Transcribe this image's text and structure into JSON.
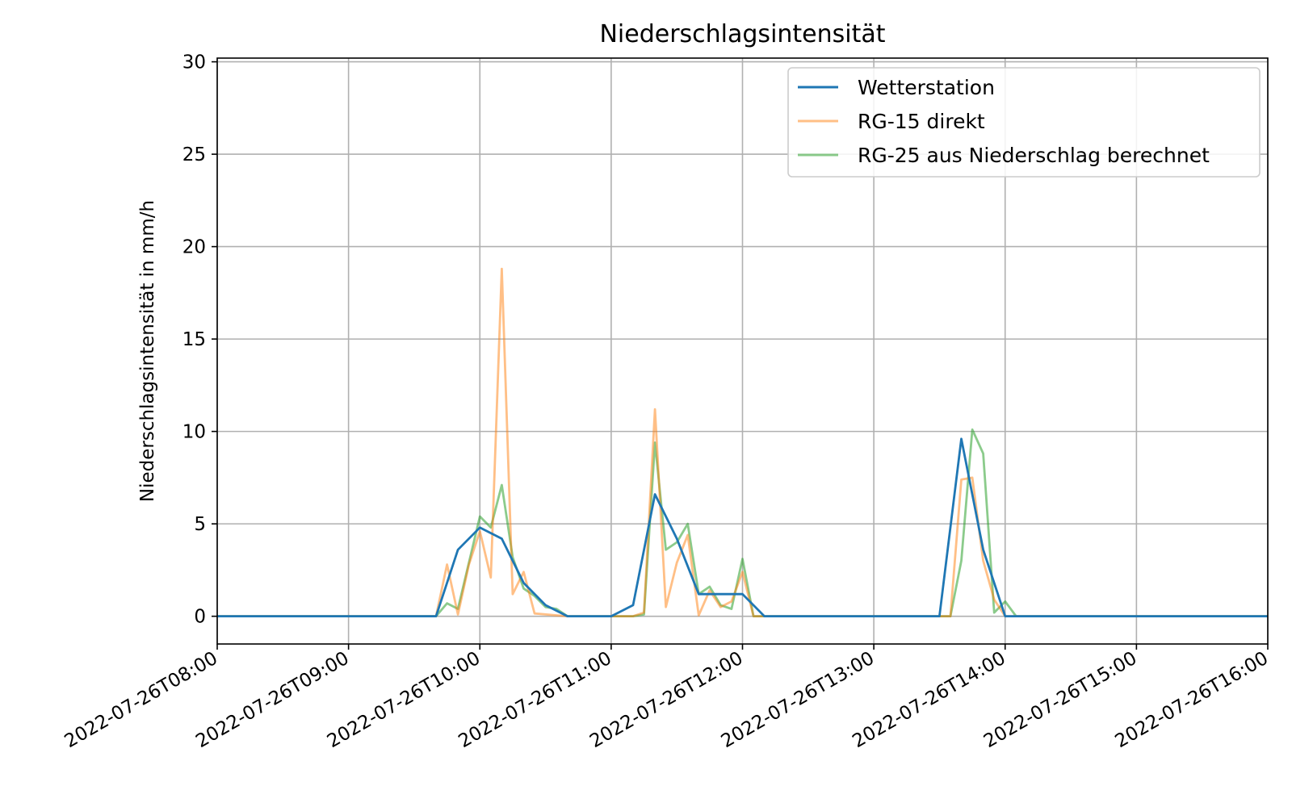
{
  "chart_data": {
    "type": "line",
    "title": "Niederschlagsintensität",
    "xlabel": "",
    "ylabel": "Niederschlagsintensität in mm/h",
    "x_tick_labels": [
      "2022-07-26T08:00",
      "2022-07-26T09:00",
      "2022-07-26T10:00",
      "2022-07-26T11:00",
      "2022-07-26T12:00",
      "2022-07-26T13:00",
      "2022-07-26T14:00",
      "2022-07-26T15:00",
      "2022-07-26T16:00"
    ],
    "xlim": [
      "2022-07-26T08:00",
      "2022-07-26T16:00"
    ],
    "ylim": [
      -1.5,
      30.2
    ],
    "y_ticks": [
      0,
      5,
      10,
      15,
      20,
      25,
      30
    ],
    "grid": true,
    "legend_position": "top-right",
    "series": [
      {
        "name": "Wetterstation",
        "color": "#1f77b4",
        "opacity": 1,
        "points": [
          [
            "2022-07-26T08:00",
            0
          ],
          [
            "2022-07-26T09:40",
            0
          ],
          [
            "2022-07-26T09:50",
            3.6
          ],
          [
            "2022-07-26T10:00",
            4.8
          ],
          [
            "2022-07-26T10:10",
            4.2
          ],
          [
            "2022-07-26T10:20",
            1.8
          ],
          [
            "2022-07-26T10:30",
            0.6
          ],
          [
            "2022-07-26T10:40",
            0
          ],
          [
            "2022-07-26T11:00",
            0
          ],
          [
            "2022-07-26T11:10",
            0.6
          ],
          [
            "2022-07-26T11:20",
            6.6
          ],
          [
            "2022-07-26T11:30",
            4.2
          ],
          [
            "2022-07-26T11:40",
            1.2
          ],
          [
            "2022-07-26T11:50",
            1.2
          ],
          [
            "2022-07-26T12:00",
            1.2
          ],
          [
            "2022-07-26T12:10",
            0
          ],
          [
            "2022-07-26T13:30",
            0
          ],
          [
            "2022-07-26T13:40",
            9.6
          ],
          [
            "2022-07-26T13:50",
            3.6
          ],
          [
            "2022-07-26T14:00",
            0
          ],
          [
            "2022-07-26T16:00",
            0
          ]
        ]
      },
      {
        "name": "RG-15 direkt",
        "color": "#ff7f0e",
        "opacity": 0.5,
        "points": [
          [
            "2022-07-26T08:00",
            0
          ],
          [
            "2022-07-26T09:40",
            0
          ],
          [
            "2022-07-26T09:45",
            2.8
          ],
          [
            "2022-07-26T09:50",
            0.1
          ],
          [
            "2022-07-26T09:55",
            2.8
          ],
          [
            "2022-07-26T10:00",
            4.6
          ],
          [
            "2022-07-26T10:05",
            2.1
          ],
          [
            "2022-07-26T10:10",
            18.8
          ],
          [
            "2022-07-26T10:15",
            1.2
          ],
          [
            "2022-07-26T10:20",
            2.4
          ],
          [
            "2022-07-26T10:25",
            0.15
          ],
          [
            "2022-07-26T10:35",
            0.05
          ],
          [
            "2022-07-26T10:40",
            0
          ],
          [
            "2022-07-26T11:10",
            0
          ],
          [
            "2022-07-26T11:15",
            0.2
          ],
          [
            "2022-07-26T11:20",
            11.2
          ],
          [
            "2022-07-26T11:25",
            0.5
          ],
          [
            "2022-07-26T11:30",
            2.9
          ],
          [
            "2022-07-26T11:35",
            4.4
          ],
          [
            "2022-07-26T11:40",
            0.05
          ],
          [
            "2022-07-26T11:45",
            1.4
          ],
          [
            "2022-07-26T11:50",
            0.5
          ],
          [
            "2022-07-26T11:55",
            0.8
          ],
          [
            "2022-07-26T12:00",
            2.4
          ],
          [
            "2022-07-26T12:05",
            0
          ],
          [
            "2022-07-26T13:35",
            0
          ],
          [
            "2022-07-26T13:40",
            7.4
          ],
          [
            "2022-07-26T13:45",
            7.5
          ],
          [
            "2022-07-26T13:50",
            3.0
          ],
          [
            "2022-07-26T13:55",
            0.9
          ],
          [
            "2022-07-26T14:00",
            0
          ],
          [
            "2022-07-26T16:00",
            0
          ]
        ]
      },
      {
        "name": "RG-25 aus Niederschlag berechnet",
        "color": "#2ca02c",
        "opacity": 0.55,
        "points": [
          [
            "2022-07-26T08:00",
            0
          ],
          [
            "2022-07-26T09:40",
            0
          ],
          [
            "2022-07-26T09:45",
            0.7
          ],
          [
            "2022-07-26T09:50",
            0.4
          ],
          [
            "2022-07-26T10:00",
            5.4
          ],
          [
            "2022-07-26T10:05",
            4.8
          ],
          [
            "2022-07-26T10:10",
            7.1
          ],
          [
            "2022-07-26T10:15",
            3.2
          ],
          [
            "2022-07-26T10:20",
            1.5
          ],
          [
            "2022-07-26T10:25",
            1.1
          ],
          [
            "2022-07-26T10:30",
            0.5
          ],
          [
            "2022-07-26T10:35",
            0.4
          ],
          [
            "2022-07-26T10:40",
            0
          ],
          [
            "2022-07-26T11:10",
            0
          ],
          [
            "2022-07-26T11:15",
            0.1
          ],
          [
            "2022-07-26T11:20",
            9.4
          ],
          [
            "2022-07-26T11:25",
            3.6
          ],
          [
            "2022-07-26T11:30",
            4.0
          ],
          [
            "2022-07-26T11:35",
            5.0
          ],
          [
            "2022-07-26T11:40",
            1.2
          ],
          [
            "2022-07-26T11:45",
            1.6
          ],
          [
            "2022-07-26T11:50",
            0.6
          ],
          [
            "2022-07-26T11:55",
            0.4
          ],
          [
            "2022-07-26T12:00",
            3.1
          ],
          [
            "2022-07-26T12:05",
            0
          ],
          [
            "2022-07-26T13:35",
            0
          ],
          [
            "2022-07-26T13:40",
            3.0
          ],
          [
            "2022-07-26T13:45",
            10.1
          ],
          [
            "2022-07-26T13:50",
            8.8
          ],
          [
            "2022-07-26T13:55",
            0.2
          ],
          [
            "2022-07-26T14:00",
            0.8
          ],
          [
            "2022-07-26T14:05",
            0
          ],
          [
            "2022-07-26T16:00",
            0
          ]
        ]
      }
    ]
  }
}
